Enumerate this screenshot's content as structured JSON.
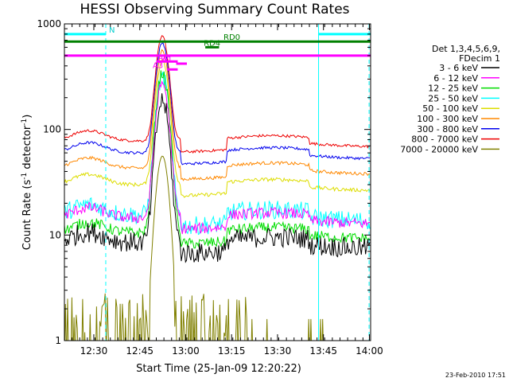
{
  "chart_data": {
    "type": "line",
    "title": "HESSI Observing Summary Count Rates",
    "xlabel": "Start Time (25-Jan-09 12:20:22)",
    "ylabel_main": "Count Rate (s",
    "ylabel_sup1": "-1",
    "ylabel_mid": " detector",
    "ylabel_sup2": "-1",
    "ylabel_end": ")",
    "yscale": "log",
    "ylim": [
      1,
      1000
    ],
    "xlim_minutes": [
      0,
      100
    ],
    "x_unit": "minutes after 12:20:22",
    "x_ticks": [
      {
        "label": "12:30",
        "t": 9.6
      },
      {
        "label": "12:45",
        "t": 24.6
      },
      {
        "label": "13:00",
        "t": 39.6
      },
      {
        "label": "13:15",
        "t": 54.6
      },
      {
        "label": "13:30",
        "t": 69.6
      },
      {
        "label": "13:45",
        "t": 84.6
      },
      {
        "label": "14:00",
        "t": 99.6
      }
    ],
    "y_ticks": [
      {
        "label": "1",
        "v": 1
      },
      {
        "label": "10",
        "v": 10
      },
      {
        "label": "100",
        "v": 100
      },
      {
        "label": "1000",
        "v": 1000
      }
    ],
    "legend_header": [
      "Det 1,3,4,5,6,9,",
      "FDecim 1"
    ],
    "legend_position": "right",
    "series": [
      {
        "name": "3 - 6 keV",
        "color": "#000000",
        "base": 8.5,
        "peak": 180,
        "noise": 0.22
      },
      {
        "name": "6 - 12 keV",
        "color": "#ff00ff",
        "base": 14.5,
        "peak": 260,
        "noise": 0.12
      },
      {
        "name": "12 - 25 keV",
        "color": "#00dd00",
        "base": 10.5,
        "peak": 330,
        "noise": 0.12
      },
      {
        "name": "25 - 50 keV",
        "color": "#00ffff",
        "base": 15.5,
        "peak": 300,
        "noise": 0.2
      },
      {
        "name": "50 - 100 keV",
        "color": "#dddd00",
        "base": 30,
        "peak": 420,
        "noise": 0.04
      },
      {
        "name": "100 - 300 keV",
        "color": "#ff8800",
        "base": 43,
        "peak": 520,
        "noise": 0.035
      },
      {
        "name": "300 - 800 keV",
        "color": "#0000ee",
        "base": 60,
        "peak": 600,
        "noise": 0.03
      },
      {
        "name": "800 - 7000 keV",
        "color": "#ee0000",
        "base": 78,
        "peak": 680,
        "noise": 0.03
      },
      {
        "name": "7000 - 20000 keV",
        "color": "#808000",
        "base": 1.2,
        "peak": 55,
        "noise": 0.6
      }
    ],
    "peak_time_minutes": 32,
    "annotations": [
      {
        "label": "N",
        "color": "#00ffff",
        "kind": "bar",
        "t0": 0,
        "t1": 13.5,
        "v": 800
      },
      {
        "label": "",
        "color": "#00ffff",
        "kind": "bar",
        "t0": 83,
        "t1": 100,
        "v": 800
      },
      {
        "label": "RD0",
        "color": "#008000",
        "kind": "bar",
        "t0": 0,
        "t1": 100,
        "v": 680
      },
      {
        "label": "RD4",
        "color": "#008000",
        "kind": "bar",
        "t0": 46,
        "t1": 50.5,
        "v": 600
      },
      {
        "label": "",
        "color": "#ff00ff",
        "kind": "bar",
        "t0": 0,
        "t1": 100,
        "v": 500
      },
      {
        "label": "A0",
        "color": "#ff00ff",
        "kind": "bar",
        "t0": 30,
        "t1": 37,
        "v": 440
      },
      {
        "label": "A1",
        "color": "#ff00ff",
        "kind": "bar",
        "t0": 36.5,
        "t1": 40,
        "v": 420
      },
      {
        "label": "A3",
        "color": "#ff00ff",
        "kind": "bar",
        "t0": 33.5,
        "t1": 37,
        "v": 370
      }
    ],
    "vertical_markers": [
      {
        "color": "#00ffff",
        "style": "dashed",
        "t": 13.5
      },
      {
        "color": "#00ffff",
        "style": "solid",
        "t": 83
      },
      {
        "color": "#00ffff",
        "style": "dashed",
        "t": 99.5
      }
    ]
  },
  "footer_date": "23-Feb-2010 17:51"
}
